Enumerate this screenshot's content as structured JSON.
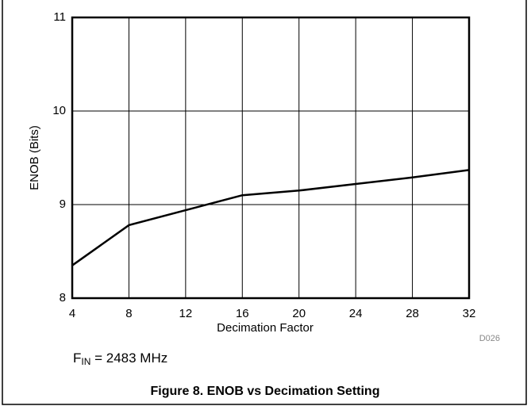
{
  "chart_data": {
    "type": "line",
    "x_label": "Decimation Factor",
    "y_label": "ENOB (Bits)",
    "x": [
      4,
      8,
      12,
      16,
      20,
      24,
      28,
      32
    ],
    "series": [
      {
        "color": "#000000",
        "values": [
          8.35,
          8.78,
          8.94,
          9.1,
          9.15,
          9.22,
          9.29,
          9.37
        ]
      }
    ],
    "xlim": [
      4,
      32
    ],
    "xticks": [
      4,
      8,
      12,
      16,
      20,
      24,
      28,
      32
    ],
    "ylim": [
      8,
      11
    ],
    "yticks": [
      8,
      9,
      10,
      11
    ],
    "grid": true,
    "code": "D026",
    "annotation": [
      "F",
      "IN",
      " = 2483 MHz"
    ],
    "caption": "Figure 8. ENOB vs Decimation Setting"
  }
}
